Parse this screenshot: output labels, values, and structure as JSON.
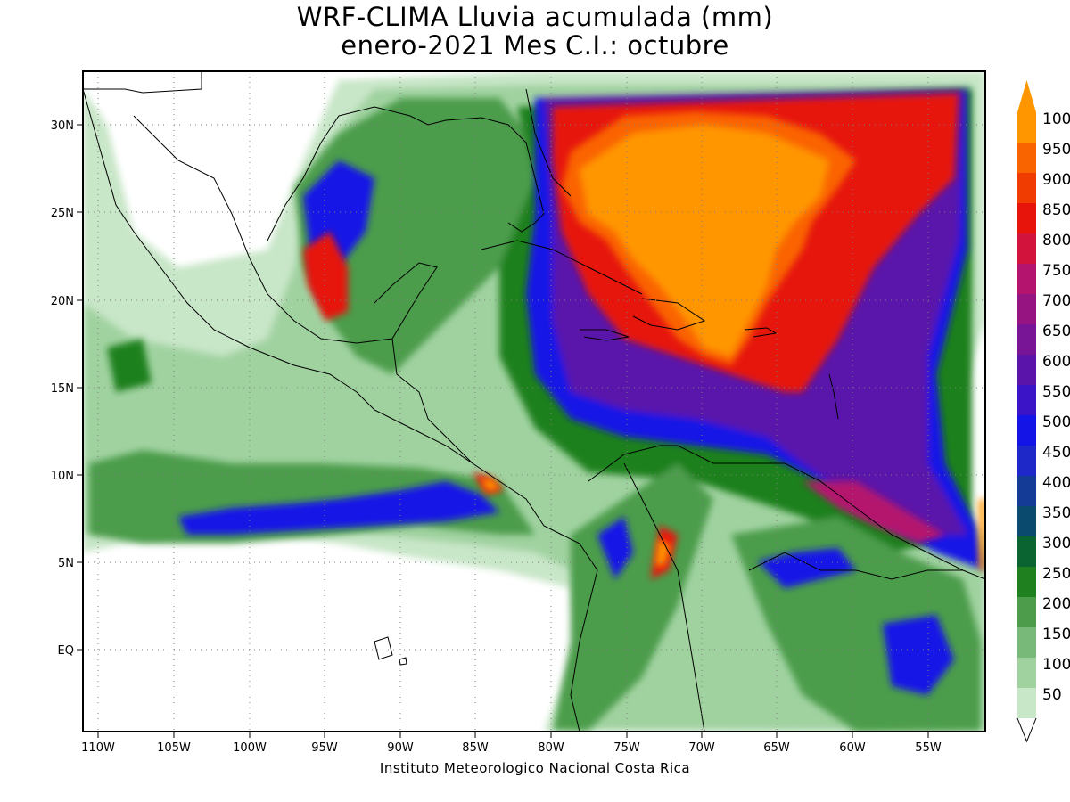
{
  "title": "WRF-CLIMA Lluvia acumulada (mm)",
  "subtitle": "enero-2021 Mes C.I.: octubre",
  "credit": "Instituto Meteorologico Nacional Costa Rica",
  "x_ticks": [
    "110W",
    "105W",
    "100W",
    "95W",
    "90W",
    "85W",
    "80W",
    "75W",
    "70W",
    "65W",
    "60W",
    "55W"
  ],
  "y_ticks": [
    "30N",
    "25N",
    "20N",
    "15N",
    "10N",
    "5N",
    "EQ"
  ],
  "legend": {
    "labels": [
      "50",
      "100",
      "150",
      "200",
      "250",
      "300",
      "350",
      "400",
      "450",
      "500",
      "550",
      "600",
      "650",
      "700",
      "750",
      "800",
      "850",
      "900",
      "950",
      "1000"
    ],
    "colors": [
      "#c8e6c8",
      "#a0d2a0",
      "#78b878",
      "#4c9c4c",
      "#1e801e",
      "#0a6432",
      "#0a4a6e",
      "#143c96",
      "#1e28c8",
      "#1414e6",
      "#3c14c8",
      "#5a14aa",
      "#781496",
      "#961482",
      "#b4146e",
      "#d2143c",
      "#e6140a",
      "#f03c00",
      "#fa6400",
      "#ff9600"
    ]
  },
  "map_data": {
    "variable": "Lluvia acumulada (mm)",
    "lon_range": [
      -111,
      -51
    ],
    "lat_range": [
      -5.5,
      33
    ],
    "grid": "dotted",
    "maxima": [
      {
        "region": "Caribe oriental / Atlántico al norte de Puerto Rico",
        "value_range": "950-1000+"
      },
      {
        "region": "Costa Caribe de Costa Rica",
        "value_range": "950-1000"
      },
      {
        "region": "Occidente de Colombia",
        "value_range": "900-1000"
      }
    ]
  }
}
